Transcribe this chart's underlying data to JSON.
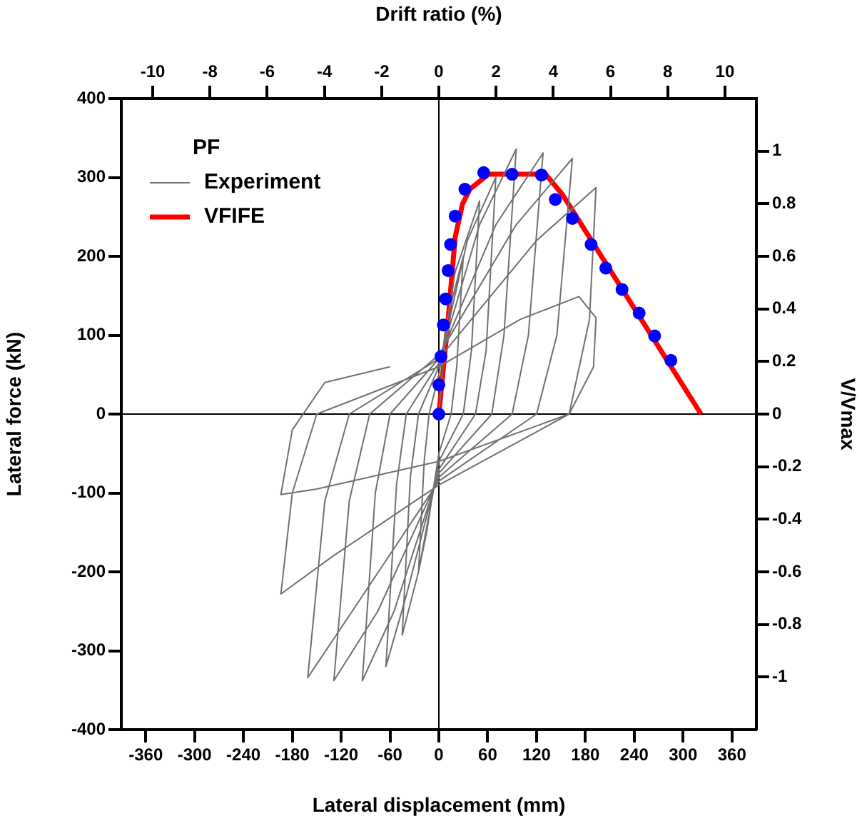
{
  "chart_data": {
    "type": "line",
    "xlabel": "Lateral displacement (mm)",
    "ylabel": "Lateral force (kN)",
    "y2label": "V/Vmax",
    "x2label": "Drift ratio (%)",
    "legend_title": "PF",
    "legend": "top left",
    "xlim": [
      -390,
      390
    ],
    "xticks": [
      -360,
      -300,
      -240,
      -180,
      -120,
      -60,
      0,
      60,
      120,
      180,
      240,
      300,
      360
    ],
    "x2lim": [
      -11.1,
      11.1
    ],
    "x2ticks": [
      -10,
      -8,
      -6,
      -4,
      -2,
      0,
      2,
      4,
      6,
      8,
      10
    ],
    "ylim": [
      -400,
      400
    ],
    "yticks": [
      -400,
      -300,
      -200,
      -100,
      0,
      100,
      200,
      300,
      400
    ],
    "y2lim": [
      -1.2,
      1.2
    ],
    "y2ticks": [
      -1,
      -0.8,
      -0.6,
      -0.4,
      -0.2,
      0,
      0.2,
      0.4,
      0.6,
      0.8,
      1
    ],
    "series": [
      {
        "name": "Experiment",
        "color": "#707070",
        "marker": "none",
        "x": [
          0,
          10,
          30,
          22,
          15,
          0,
          -15,
          -25,
          -18,
          -12,
          0,
          20,
          50,
          40,
          30,
          0,
          -25,
          -45,
          -35,
          -25,
          0,
          35,
          70,
          58,
          45,
          0,
          -40,
          -65,
          -52,
          -40,
          0,
          50,
          95,
          80,
          65,
          0,
          -55,
          -94,
          -78,
          -60,
          0,
          70,
          128,
          110,
          90,
          0,
          -75,
          -129,
          -110,
          -85,
          0,
          95,
          164,
          145,
          120,
          0,
          -100,
          -161,
          -140,
          -110,
          0,
          120,
          193,
          185,
          160,
          0,
          -130,
          -194,
          -180,
          -150,
          0,
          100,
          172,
          193,
          190,
          160,
          0,
          -150,
          -194,
          -180,
          -140,
          -60
        ],
        "values": [
          0,
          120,
          200,
          60,
          0,
          -50,
          -150,
          -200,
          -60,
          0,
          50,
          180,
          270,
          80,
          0,
          -60,
          -200,
          -280,
          -80,
          0,
          60,
          220,
          300,
          80,
          0,
          -70,
          -230,
          -320,
          -90,
          0,
          65,
          240,
          336,
          100,
          0,
          -75,
          -250,
          -338,
          -100,
          0,
          70,
          240,
          331,
          100,
          0,
          -80,
          -250,
          -338,
          -110,
          0,
          75,
          240,
          324,
          100,
          0,
          -85,
          -240,
          -334,
          -110,
          0,
          70,
          220,
          287,
          120,
          0,
          -90,
          -180,
          -228,
          -100,
          0,
          60,
          120,
          149,
          122,
          60,
          0,
          -60,
          -95,
          -102,
          -20,
          40,
          60
        ]
      },
      {
        "type": "scatter",
        "color": "#0000ff",
        "marker": "circle",
        "x": [
          0,
          0,
          2.6,
          5.6,
          8.4,
          11.4,
          14.4,
          20,
          32,
          55,
          90,
          126,
          143,
          164,
          187,
          205,
          225,
          246,
          265,
          285
        ],
        "values": [
          0,
          37,
          73,
          113,
          146,
          182,
          215,
          251,
          285,
          306,
          304,
          303,
          272,
          248,
          215,
          185,
          158,
          128,
          99,
          68
        ]
      },
      {
        "name": "VFIFE",
        "color": "#ff0000",
        "marker": "none",
        "x": [
          0,
          11,
          20,
          29,
          38,
          61,
          131,
          152,
          322
        ],
        "values": [
          0,
          115,
          224,
          266,
          285,
          304,
          304,
          278,
          0
        ]
      }
    ]
  }
}
